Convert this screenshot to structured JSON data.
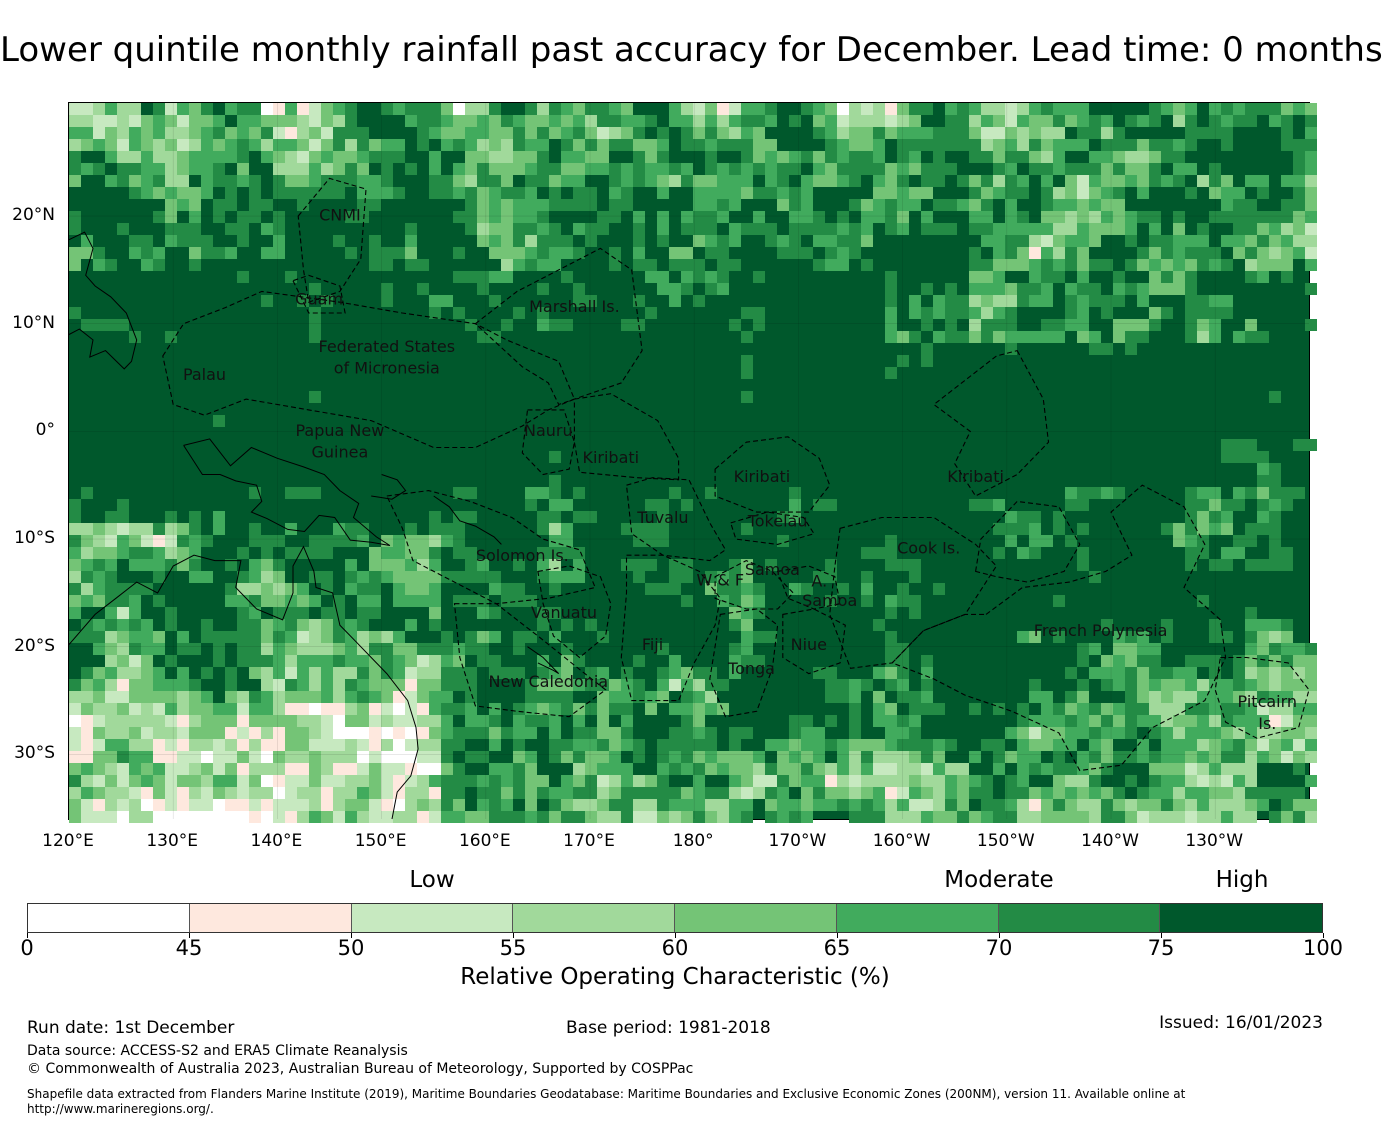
{
  "title": "Lower quintile monthly rainfall past accuracy for December. Lead time: 0 months",
  "map": {
    "lat_ticks": [
      {
        "label": "20°N",
        "lat": 20
      },
      {
        "label": "10°N",
        "lat": 10
      },
      {
        "label": "0°",
        "lat": 0
      },
      {
        "label": "10°S",
        "lat": -10
      },
      {
        "label": "20°S",
        "lat": -20
      },
      {
        "label": "30°S",
        "lat": -30
      }
    ],
    "lon_ticks": [
      {
        "label": "120°E",
        "lon": 120
      },
      {
        "label": "130°E",
        "lon": 130
      },
      {
        "label": "140°E",
        "lon": 140
      },
      {
        "label": "150°E",
        "lon": 150
      },
      {
        "label": "160°E",
        "lon": 160
      },
      {
        "label": "170°E",
        "lon": 170
      },
      {
        "label": "180°",
        "lon": 180
      },
      {
        "label": "170°W",
        "lon": 190
      },
      {
        "label": "160°W",
        "lon": 200
      },
      {
        "label": "150°W",
        "lon": 210
      },
      {
        "label": "140°W",
        "lon": 220
      },
      {
        "label": "130°W",
        "lon": 230
      }
    ],
    "extent": {
      "lon_min": 120,
      "lon_max": 239,
      "lat_min": -36,
      "lat_max": 30.5
    },
    "regions": [
      {
        "name": "CNMI",
        "lon": 146,
        "lat": 20
      },
      {
        "name": "Guam",
        "lon": 144,
        "lat": 12.2
      },
      {
        "name": "Marshall Is.",
        "lon": 168.5,
        "lat": 11.5
      },
      {
        "name": "Federated States",
        "lon": 150.5,
        "lat": 7.8
      },
      {
        "name": "of Micronesia",
        "lon": 150.5,
        "lat": 5.8
      },
      {
        "name": "Palau",
        "lon": 133,
        "lat": 5.2
      },
      {
        "name": "Papua New",
        "lon": 146,
        "lat": 0
      },
      {
        "name": "Guinea",
        "lon": 146,
        "lat": -2
      },
      {
        "name": "Nauru",
        "lon": 166,
        "lat": 0
      },
      {
        "name": "Kiribati",
        "lon": 172,
        "lat": -2.5
      },
      {
        "name": "Kiribati",
        "lon": 186.5,
        "lat": -4.3
      },
      {
        "name": "Kiribati",
        "lon": 207,
        "lat": -4.3
      },
      {
        "name": "Tuvalu",
        "lon": 177,
        "lat": -8.1
      },
      {
        "name": "Tokelau",
        "lon": 188,
        "lat": -8.4
      },
      {
        "name": "Solomon Is.",
        "lon": 163.5,
        "lat": -11.6
      },
      {
        "name": "Cook Is.",
        "lon": 202.5,
        "lat": -10.9
      },
      {
        "name": "Samoa",
        "lon": 187.5,
        "lat": -12.9
      },
      {
        "name": "W & F",
        "lon": 182.5,
        "lat": -13.9
      },
      {
        "name": "A.",
        "lon": 192,
        "lat": -14
      },
      {
        "name": "Samoa",
        "lon": 193,
        "lat": -15.8
      },
      {
        "name": "Vanuatu",
        "lon": 167.5,
        "lat": -16.9
      },
      {
        "name": "Fiji",
        "lon": 176,
        "lat": -19.9
      },
      {
        "name": "Niue",
        "lon": 191,
        "lat": -19.9
      },
      {
        "name": "Tonga",
        "lon": 185.5,
        "lat": -22.1
      },
      {
        "name": "French Polynesia",
        "lon": 219,
        "lat": -18.6
      },
      {
        "name": "New Caledonia",
        "lon": 166,
        "lat": -23.3
      },
      {
        "name": "Pitcairn",
        "lon": 235,
        "lat": -25.2
      },
      {
        "name": "Is.",
        "lon": 235,
        "lat": -27.2
      }
    ]
  },
  "colorbar": {
    "category_labels": [
      {
        "label": "Low",
        "value": 50
      },
      {
        "label": "Moderate",
        "value": 65
      },
      {
        "label": "High",
        "value": 75
      }
    ],
    "bins": [
      {
        "from": 0,
        "to": 45,
        "color": "#ffffff"
      },
      {
        "from": 45,
        "to": 50,
        "color": "#fee8de"
      },
      {
        "from": 50,
        "to": 55,
        "color": "#c7e9c0"
      },
      {
        "from": 55,
        "to": 60,
        "color": "#a1d99b"
      },
      {
        "from": 60,
        "to": 65,
        "color": "#74c476"
      },
      {
        "from": 65,
        "to": 70,
        "color": "#41ab5d"
      },
      {
        "from": 70,
        "to": 75,
        "color": "#238b45"
      },
      {
        "from": 75,
        "to": 100,
        "color": "#00582c"
      }
    ],
    "tick_labels": [
      "0",
      "45",
      "50",
      "55",
      "60",
      "65",
      "70",
      "75",
      "100"
    ],
    "axis_label": "Relative Operating Characteristic (%)"
  },
  "footer": {
    "run_date": "Run date: 1st December",
    "base_period": "Base period: 1981-2018",
    "issued": "Issued: 16/01/2023",
    "data_source": "Data source: ACCESS-S2 and ERA5 Climate Reanalysis",
    "copyright": "© Commonwealth of Australia 2023, Australian Bureau of Meteorology, Supported by COSPPac",
    "shapefile_line1": "Shapefile data extracted from Flanders Marine Institute (2019), Maritime Boundaries Geodatabase: Maritime Boundaries and Exclusive Economic Zones (200NM), version 11. Available online at",
    "shapefile_line2": "http://www.marineregions.org/."
  }
}
